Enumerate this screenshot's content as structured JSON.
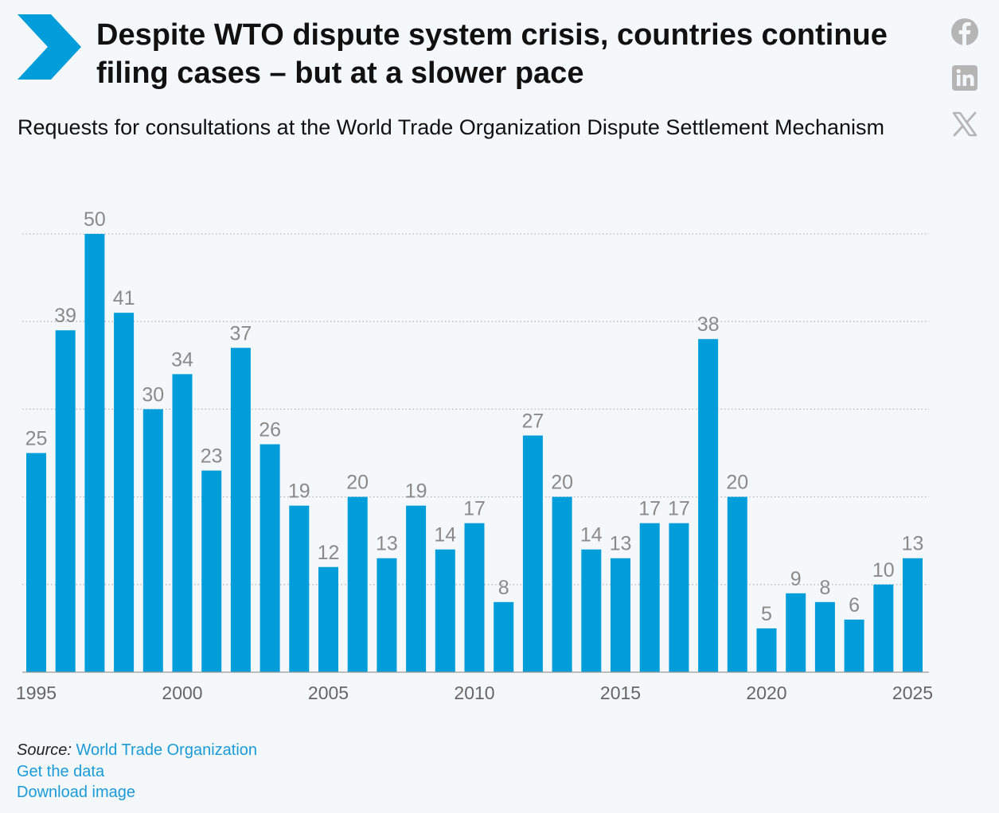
{
  "header": {
    "title": "Despite WTO dispute system crisis, countries continue filing cases – but at a slower pace",
    "subtitle": "Requests for consultations at the World Trade Organization Dispute Settlement Mechanism"
  },
  "social": [
    "facebook-icon",
    "linkedin-icon",
    "x-icon"
  ],
  "colors": {
    "bar": "#009ddb",
    "label": "#8a8a8a",
    "grid": "#b8b8b8",
    "accent": "#1a9ad6"
  },
  "chart_data": {
    "type": "bar",
    "title": "Requests for consultations at the World Trade Organization Dispute Settlement Mechanism",
    "categories": [
      1995,
      1996,
      1997,
      1998,
      1999,
      2000,
      2001,
      2002,
      2003,
      2004,
      2005,
      2006,
      2007,
      2008,
      2009,
      2010,
      2011,
      2012,
      2013,
      2014,
      2015,
      2016,
      2017,
      2018,
      2019,
      2020,
      2021,
      2022,
      2023,
      2024,
      2025
    ],
    "values": [
      25,
      39,
      50,
      41,
      30,
      34,
      23,
      37,
      26,
      19,
      12,
      20,
      13,
      19,
      14,
      17,
      8,
      27,
      20,
      14,
      13,
      17,
      17,
      38,
      20,
      5,
      9,
      8,
      6,
      10,
      13
    ],
    "x_tick_labels": [
      "1995",
      "2000",
      "2005",
      "2010",
      "2015",
      "2020",
      "2025"
    ],
    "ylim": [
      0,
      50
    ],
    "gridlines": [
      10,
      20,
      30,
      40,
      50
    ],
    "grid": true,
    "data_labels": true
  },
  "footer": {
    "source_label": "Source:",
    "source_link": "World Trade Organization",
    "get_data": "Get the data",
    "download": "Download image"
  }
}
